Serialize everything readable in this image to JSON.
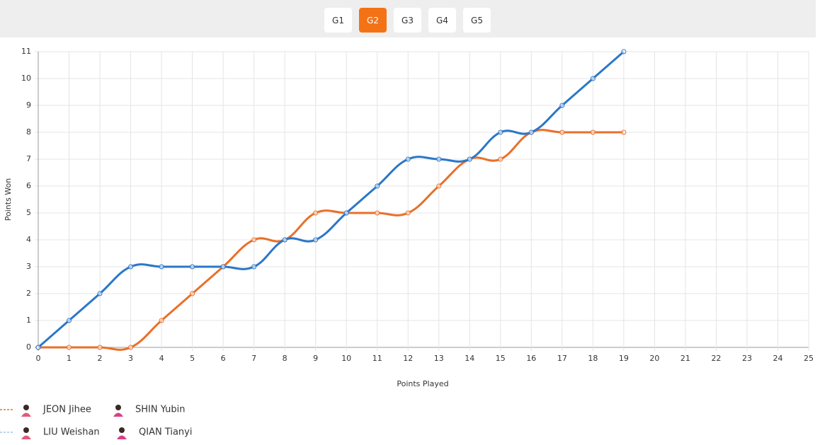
{
  "tabs": [
    "G1",
    "G2",
    "G3",
    "G4",
    "G5"
  ],
  "active_tab": "G2",
  "chart_data": {
    "type": "line",
    "xlabel": "Points Played",
    "ylabel": "Points Won",
    "x": [
      0,
      1,
      2,
      3,
      4,
      5,
      6,
      7,
      8,
      9,
      10,
      11,
      12,
      13,
      14,
      15,
      16,
      17,
      18,
      19
    ],
    "series": [
      {
        "players": [
          "JEON Jihee",
          "SHIN Yubin"
        ],
        "color": "#e8702a",
        "values": [
          0,
          0,
          0,
          0,
          1,
          2,
          3,
          4,
          4,
          5,
          5,
          5,
          5,
          6,
          7,
          7,
          8,
          8,
          8,
          8
        ]
      },
      {
        "players": [
          "LIU Weishan",
          "QIAN Tianyi"
        ],
        "color": "#2a77c9",
        "values": [
          0,
          1,
          2,
          3,
          3,
          3,
          3,
          3,
          4,
          4,
          5,
          6,
          7,
          7,
          7,
          8,
          8,
          9,
          10,
          11
        ]
      }
    ],
    "xlim": [
      0,
      25
    ],
    "xticks": [
      0,
      1,
      2,
      3,
      4,
      5,
      6,
      7,
      8,
      9,
      10,
      11,
      12,
      13,
      14,
      15,
      16,
      17,
      18,
      19,
      20,
      21,
      22,
      23,
      24,
      25
    ],
    "ylim": [
      0,
      11
    ],
    "yticks": [
      0,
      1,
      2,
      3,
      4,
      5,
      6,
      7,
      8,
      9,
      10,
      11
    ],
    "grid": true
  }
}
